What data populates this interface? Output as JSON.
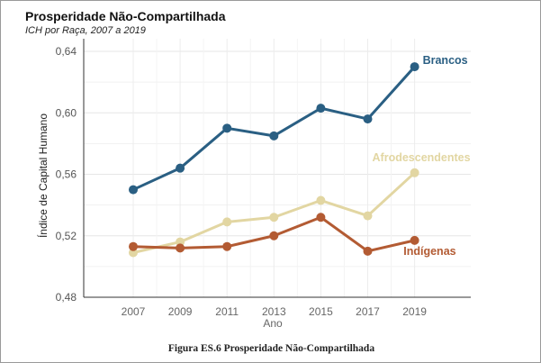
{
  "figure": {
    "title": "Prosperidade Não-Compartilhada",
    "subtitle": "ICH por Raça, 2007 a 2019",
    "caption": "Figura ES.6 Prosperidade Não-Compartilhada"
  },
  "chart_data": {
    "type": "line",
    "title": "Prosperidade Não-Compartilhada",
    "subtitle": "ICH por Raça, 2007 a 2019",
    "xlabel": "Ano",
    "ylabel": "Índice de Capital Humano",
    "x": [
      2007,
      2009,
      2011,
      2013,
      2015,
      2017,
      2019
    ],
    "ylim": [
      0.48,
      0.64
    ],
    "yticks": [
      "0,48",
      "0,52",
      "0,56",
      "0,60",
      "0,64"
    ],
    "ytick_values": [
      0.48,
      0.52,
      0.56,
      0.6,
      0.64
    ],
    "grid": true,
    "legend": "direct labels at line ends",
    "series": [
      {
        "name": "Brancos",
        "color": "#2a5f83",
        "values": [
          0.55,
          0.564,
          0.59,
          0.585,
          0.603,
          0.596,
          0.63
        ]
      },
      {
        "name": "Afrodescendentes",
        "color": "#e2d6a2",
        "values": [
          0.509,
          0.516,
          0.529,
          0.532,
          0.543,
          0.533,
          0.561
        ]
      },
      {
        "name": "Indígenas",
        "color": "#b35b33",
        "values": [
          0.513,
          0.512,
          0.513,
          0.52,
          0.532,
          0.51,
          0.517
        ]
      }
    ]
  }
}
